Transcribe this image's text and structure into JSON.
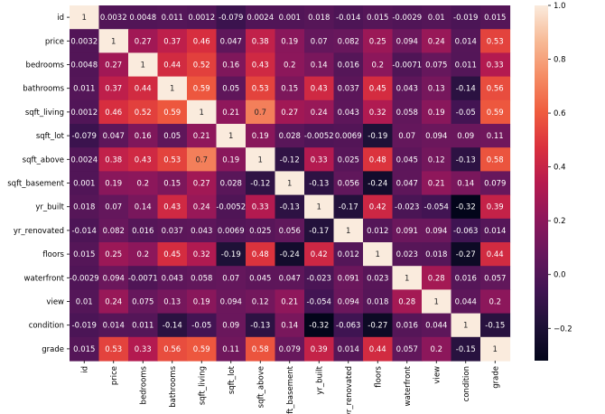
{
  "chart_data": {
    "type": "heatmap",
    "title": "",
    "xlabel": "",
    "ylabel": "",
    "labels": [
      "id",
      "price",
      "bedrooms",
      "bathrooms",
      "sqft_living",
      "sqft_lot",
      "sqft_above",
      "sqft_basement",
      "yr_built",
      "yr_renovated",
      "floors",
      "waterfront",
      "view",
      "condition",
      "grade"
    ],
    "matrix": [
      [
        1,
        0.0032,
        0.0048,
        0.011,
        0.0012,
        -0.079,
        0.0024,
        0.001,
        0.018,
        -0.014,
        0.015,
        -0.0029,
        0.01,
        -0.019,
        0.015
      ],
      [
        0.0032,
        1,
        0.27,
        0.37,
        0.46,
        0.047,
        0.38,
        0.19,
        0.07,
        0.082,
        0.25,
        0.094,
        0.24,
        0.014,
        0.53
      ],
      [
        0.0048,
        0.27,
        1,
        0.44,
        0.52,
        0.16,
        0.43,
        0.2,
        0.14,
        0.016,
        0.2,
        -0.0071,
        0.075,
        0.011,
        0.33
      ],
      [
        0.011,
        0.37,
        0.44,
        1,
        0.59,
        0.05,
        0.53,
        0.15,
        0.43,
        0.037,
        0.45,
        0.043,
        0.13,
        -0.14,
        0.56
      ],
      [
        0.0012,
        0.46,
        0.52,
        0.59,
        1,
        0.21,
        0.7,
        0.27,
        0.24,
        0.043,
        0.32,
        0.058,
        0.19,
        -0.05,
        0.59
      ],
      [
        -0.079,
        0.047,
        0.16,
        0.05,
        0.21,
        1,
        0.19,
        0.028,
        -0.0052,
        0.0069,
        -0.19,
        0.07,
        0.094,
        0.09,
        0.11
      ],
      [
        0.0024,
        0.38,
        0.43,
        0.53,
        0.7,
        0.19,
        1,
        -0.12,
        0.33,
        0.025,
        0.48,
        0.045,
        0.12,
        -0.13,
        0.58
      ],
      [
        0.001,
        0.19,
        0.2,
        0.15,
        0.27,
        0.028,
        -0.12,
        1,
        -0.13,
        0.056,
        -0.24,
        0.047,
        0.21,
        0.14,
        0.079
      ],
      [
        0.018,
        0.07,
        0.14,
        0.43,
        0.24,
        -0.0052,
        0.33,
        -0.13,
        1,
        -0.17,
        0.42,
        -0.023,
        -0.054,
        -0.32,
        0.39
      ],
      [
        -0.014,
        0.082,
        0.016,
        0.037,
        0.043,
        0.0069,
        0.025,
        0.056,
        -0.17,
        1,
        0.012,
        0.091,
        0.094,
        -0.063,
        0.014
      ],
      [
        0.015,
        0.25,
        0.2,
        0.45,
        0.32,
        -0.19,
        0.48,
        -0.24,
        0.42,
        0.012,
        1,
        0.023,
        0.018,
        -0.27,
        0.44
      ],
      [
        -0.0029,
        0.094,
        -0.0071,
        0.043,
        0.058,
        0.07,
        0.045,
        0.047,
        -0.023,
        0.091,
        0.023,
        1,
        0.28,
        0.016,
        0.057
      ],
      [
        0.01,
        0.24,
        0.075,
        0.13,
        0.19,
        0.094,
        0.12,
        0.21,
        -0.054,
        0.094,
        0.018,
        0.28,
        1,
        0.044,
        0.2
      ],
      [
        -0.019,
        0.014,
        0.011,
        -0.14,
        -0.05,
        0.09,
        -0.13,
        0.14,
        -0.32,
        -0.063,
        -0.27,
        0.016,
        0.044,
        1,
        -0.15
      ],
      [
        0.015,
        0.53,
        0.33,
        0.56,
        0.59,
        0.11,
        0.58,
        0.079,
        0.39,
        0.014,
        0.44,
        0.057,
        0.2,
        -0.15,
        1
      ]
    ],
    "color_range": [
      -0.32,
      1.0
    ],
    "colorbar_ticks": [
      -0.2,
      0.0,
      0.2,
      0.4,
      0.6,
      0.8,
      1.0
    ],
    "colorbar_tick_labels": [
      "−0.2",
      "0.0",
      "0.2",
      "0.4",
      "0.6",
      "0.8",
      "1.0"
    ],
    "colormap": "rocket",
    "grid": false,
    "legend": "colorbar-right"
  }
}
